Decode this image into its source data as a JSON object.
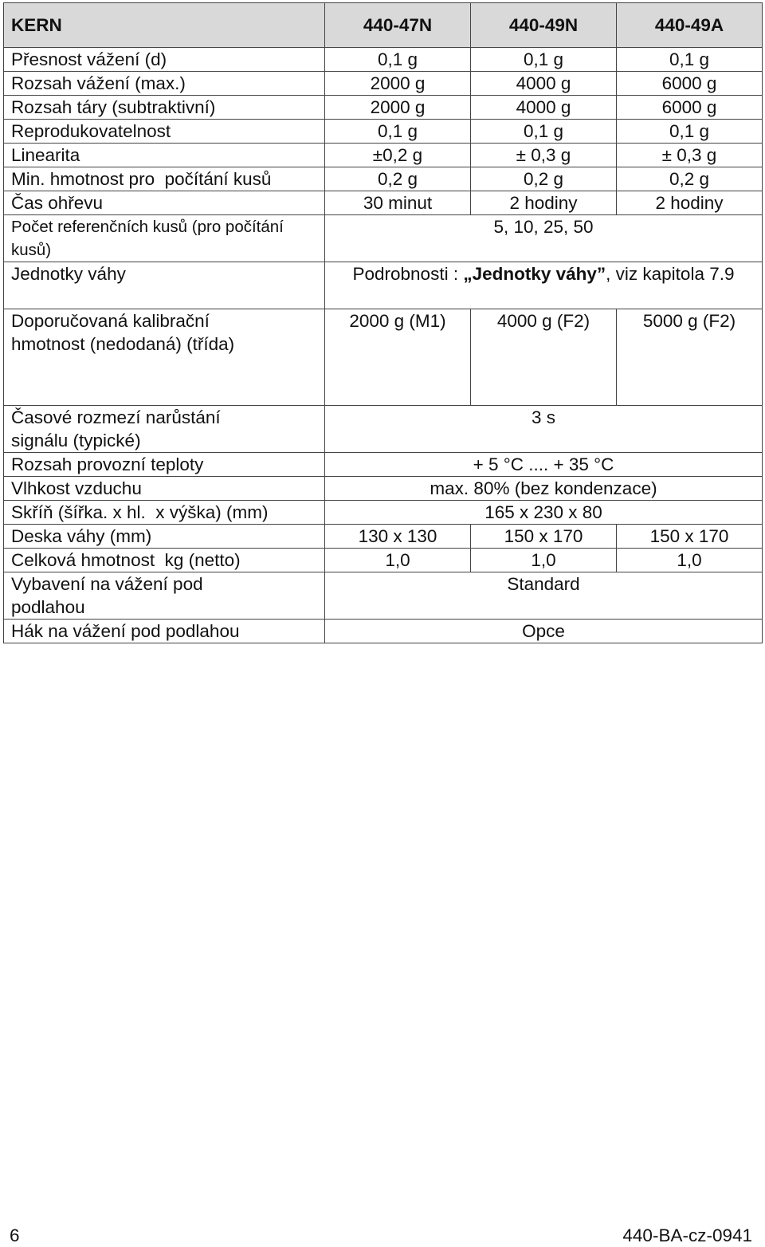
{
  "table": {
    "header": {
      "label": "KERN",
      "models": [
        "440-47N",
        "440-49N",
        "440-49A"
      ]
    },
    "rows": {
      "accuracy": {
        "label": "Přesnost vážení (d)",
        "v": [
          "0,1 g",
          "0,1 g",
          "0,1 g"
        ]
      },
      "range": {
        "label": "Rozsah vážení (max.)",
        "v": [
          "2000 g",
          "4000 g",
          "6000 g"
        ]
      },
      "tare": {
        "label": "Rozsah táry (subtraktivní)",
        "v": [
          "2000 g",
          "4000 g",
          "6000 g"
        ]
      },
      "repro": {
        "label": "Reprodukovatelnost",
        "v": [
          "0,1 g",
          "0,1 g",
          "0,1 g"
        ]
      },
      "linearity": {
        "label": "Linearita",
        "v": [
          "±0,2 g",
          "± 0,3 g",
          "± 0,3 g"
        ]
      },
      "min_weight": {
        "label": "Min. hmotnost pro  počítání kusů",
        "v": [
          "0,2 g",
          "0,2 g",
          "0,2 g"
        ]
      },
      "warmup": {
        "label": "Čas ohřevu",
        "v": [
          "30 minut",
          "2 hodiny",
          "2 hodiny"
        ]
      },
      "ref_pieces": {
        "label": "Počet referenčních kusů (pro počítání kusů)",
        "value": "5, 10, 25, 50"
      },
      "units": {
        "label": "Jednotky váhy",
        "prefix": "Podrobnosti : ",
        "bold": "„Jednotky váhy”",
        "suffix": ", viz kapitola 7.9"
      },
      "calibration": {
        "label": "Doporučovaná  kalibrační hmotnost (nedodaná) (třída)",
        "v": [
          "2000 g (M1)",
          "4000 g (F2)",
          "5000 g (F2)"
        ]
      },
      "rise_time": {
        "label": "Časové rozmezí narůstání signálu (typické)",
        "value": "3 s"
      },
      "temp": {
        "label": "Rozsah provozní teploty",
        "value": "+ 5 °C .... + 35 °C"
      },
      "humidity": {
        "label": "Vlhkost vzduchu",
        "value": "max. 80% (bez kondenzace)"
      },
      "housing": {
        "label": "Skříň (šířka. x hl.  x výška) (mm)",
        "value": "165 x 230 x 80"
      },
      "plate": {
        "label": "Deska váhy (mm)",
        "v": [
          "130 x 130",
          "150 x 170",
          "150 x 170"
        ]
      },
      "net_weight": {
        "label": "Celková hmotnost  kg (netto)",
        "v": [
          "1,0",
          "1,0",
          "1,0"
        ]
      },
      "underfloor": {
        "label": "Vybavení na  vážení pod podlahou",
        "value": "Standard"
      },
      "hook": {
        "label": "Hák na vážení pod podlahou",
        "value": "Opce"
      }
    }
  },
  "footer": {
    "page_number": "6",
    "doc_id": "440-BA-cz-0941"
  }
}
